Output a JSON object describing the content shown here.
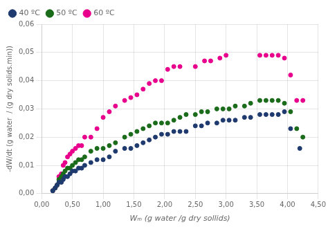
{
  "chart_data": {
    "type": "scatter",
    "xlabel": "Wₘ (g water /g dry sollids)",
    "ylabel": "-dW/dt (g water  / (g dry solids.min))",
    "xlim": [
      0.0,
      4.5
    ],
    "ylim": [
      0.0,
      0.06
    ],
    "xticks": [
      {
        "value": 0.0,
        "label": "0,00"
      },
      {
        "value": 0.5,
        "label": "0,50"
      },
      {
        "value": 1.0,
        "label": "1,00"
      },
      {
        "value": 1.5,
        "label": "1,50"
      },
      {
        "value": 2.0,
        "label": "2,00"
      },
      {
        "value": 2.5,
        "label": "2,50"
      },
      {
        "value": 3.0,
        "label": "3,00"
      },
      {
        "value": 3.5,
        "label": "3,50"
      },
      {
        "value": 4.0,
        "label": "4,00"
      },
      {
        "value": 4.5,
        "label": "4,50"
      }
    ],
    "yticks": [
      {
        "value": 0.0,
        "label": "0,00"
      },
      {
        "value": 0.01,
        "label": "0,01"
      },
      {
        "value": 0.02,
        "label": "0,02"
      },
      {
        "value": 0.03,
        "label": "0,03"
      },
      {
        "value": 0.04,
        "label": "0,04"
      },
      {
        "value": 0.05,
        "label": "0,05"
      },
      {
        "value": 0.06,
        "label": "0,06"
      }
    ],
    "grid": true,
    "legend": "upper left",
    "series": [
      {
        "name": "40 ºC",
        "color": "#1f3a6e",
        "x": [
          0.18,
          0.22,
          0.25,
          0.28,
          0.32,
          0.35,
          0.38,
          0.42,
          0.46,
          0.5,
          0.55,
          0.6,
          0.65,
          0.7,
          0.8,
          0.9,
          1.0,
          1.1,
          1.2,
          1.35,
          1.45,
          1.55,
          1.65,
          1.75,
          1.85,
          1.95,
          2.05,
          2.15,
          2.25,
          2.35,
          2.5,
          2.6,
          2.7,
          2.85,
          2.95,
          3.05,
          3.15,
          3.3,
          3.4,
          3.55,
          3.65,
          3.75,
          3.85,
          3.95,
          4.05,
          4.2
        ],
        "values": [
          0.001,
          0.002,
          0.003,
          0.004,
          0.004,
          0.005,
          0.006,
          0.006,
          0.007,
          0.008,
          0.008,
          0.009,
          0.009,
          0.01,
          0.011,
          0.012,
          0.012,
          0.013,
          0.015,
          0.016,
          0.016,
          0.017,
          0.018,
          0.019,
          0.02,
          0.021,
          0.021,
          0.022,
          0.022,
          0.022,
          0.024,
          0.024,
          0.025,
          0.025,
          0.026,
          0.026,
          0.026,
          0.027,
          0.027,
          0.028,
          0.028,
          0.028,
          0.028,
          0.029,
          0.023,
          0.016
        ]
      },
      {
        "name": "50 ºC",
        "color": "#1a6b1a",
        "x": [
          0.18,
          0.22,
          0.25,
          0.28,
          0.32,
          0.35,
          0.38,
          0.42,
          0.46,
          0.5,
          0.55,
          0.6,
          0.65,
          0.7,
          0.8,
          0.9,
          1.0,
          1.1,
          1.2,
          1.35,
          1.45,
          1.55,
          1.65,
          1.75,
          1.85,
          1.95,
          2.05,
          2.15,
          2.25,
          2.35,
          2.5,
          2.6,
          2.7,
          2.85,
          2.95,
          3.05,
          3.15,
          3.3,
          3.4,
          3.55,
          3.65,
          3.75,
          3.85,
          3.95,
          4.05,
          4.15,
          4.25
        ],
        "values": [
          0.001,
          0.002,
          0.003,
          0.005,
          0.006,
          0.007,
          0.008,
          0.009,
          0.009,
          0.01,
          0.011,
          0.012,
          0.012,
          0.013,
          0.015,
          0.016,
          0.016,
          0.017,
          0.018,
          0.02,
          0.021,
          0.022,
          0.023,
          0.024,
          0.025,
          0.025,
          0.025,
          0.026,
          0.027,
          0.028,
          0.028,
          0.029,
          0.029,
          0.03,
          0.03,
          0.03,
          0.031,
          0.031,
          0.032,
          0.033,
          0.033,
          0.033,
          0.033,
          0.032,
          0.029,
          0.023,
          0.02
        ]
      },
      {
        "name": "60 ºC",
        "color": "#e8008c",
        "x": [
          0.18,
          0.22,
          0.25,
          0.28,
          0.32,
          0.35,
          0.38,
          0.42,
          0.46,
          0.5,
          0.55,
          0.6,
          0.65,
          0.7,
          0.8,
          0.9,
          1.0,
          1.1,
          1.2,
          1.35,
          1.45,
          1.55,
          1.65,
          1.75,
          1.85,
          1.95,
          2.05,
          2.15,
          2.25,
          2.5,
          2.65,
          2.75,
          2.9,
          3.0,
          3.55,
          3.65,
          3.75,
          3.85,
          3.95,
          4.05,
          4.15,
          4.25
        ],
        "values": [
          0.001,
          0.002,
          0.003,
          0.006,
          0.007,
          0.01,
          0.011,
          0.013,
          0.014,
          0.015,
          0.016,
          0.017,
          0.017,
          0.02,
          0.02,
          0.023,
          0.027,
          0.029,
          0.031,
          0.033,
          0.034,
          0.035,
          0.037,
          0.039,
          0.04,
          0.04,
          0.044,
          0.045,
          0.045,
          0.045,
          0.047,
          0.047,
          0.048,
          0.049,
          0.049,
          0.049,
          0.049,
          0.049,
          0.048,
          0.042,
          0.033,
          0.033
        ]
      }
    ]
  }
}
